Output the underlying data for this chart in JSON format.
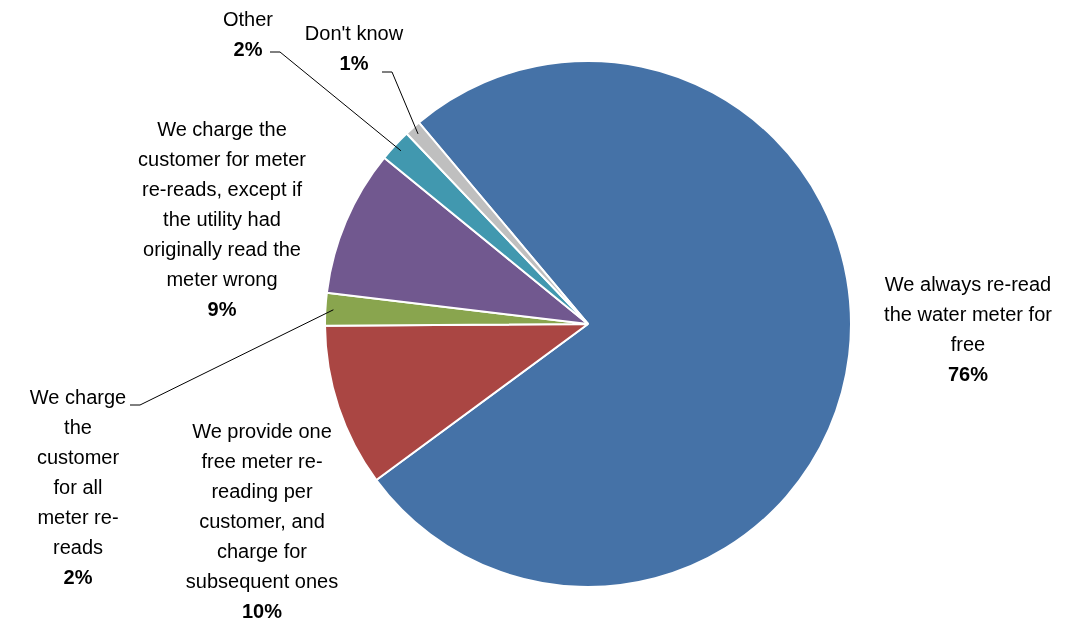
{
  "chart_data": {
    "type": "pie",
    "categories": [
      "We always re-read the water meter for free",
      "We provide one free meter re-reading per customer, and charge for subsequent ones",
      "We charge the customer for all meter re-reads",
      "We charge the customer for meter re-reads, except if the utility had originally read the meter wrong",
      "Other",
      "Don't know"
    ],
    "values": [
      76,
      10,
      2,
      9,
      2,
      1
    ],
    "value_labels": [
      "76%",
      "10%",
      "2%",
      "9%",
      "2%",
      "1%"
    ],
    "colors": [
      "#4572a7",
      "#aa4643",
      "#89a54e",
      "#71588f",
      "#4198af",
      "#bfbfbf"
    ],
    "legend": false
  }
}
